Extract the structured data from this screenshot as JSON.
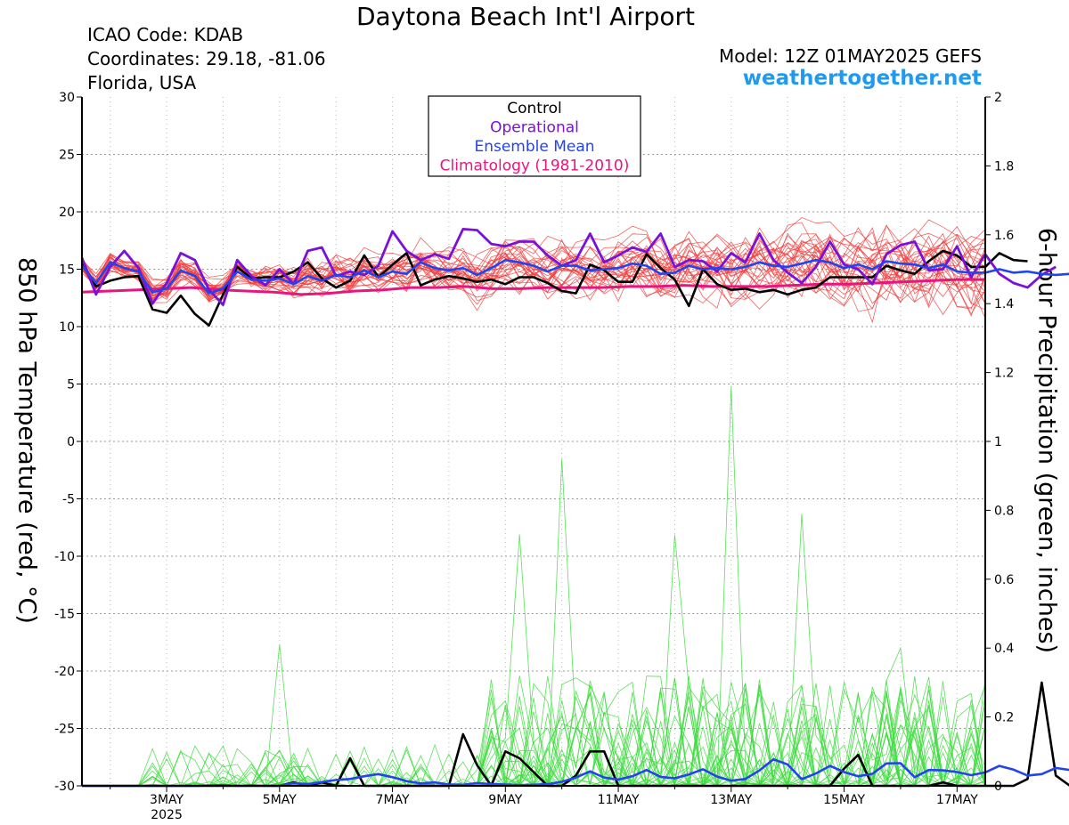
{
  "header": {
    "title": "Daytona Beach Int'l Airport",
    "icao": "ICAO Code: KDAB",
    "coordinates": "Coordinates: 29.18, -81.06",
    "location": "Florida, USA",
    "model": "Model: 12Z 01MAY2025 GEFS",
    "website": "weathertogether.net"
  },
  "colors": {
    "members_temp": "#F03C3C",
    "members_precip": "#3CDC3C",
    "control": "#000000",
    "operational": "#7B10D8",
    "ensemble_mean": "#2244EE",
    "climatology": "#E8157E",
    "website": "#1E9BF0"
  },
  "legend": {
    "items": [
      {
        "label": "Control",
        "color": "#000000"
      },
      {
        "label": "Operational",
        "color": "#7B10D8"
      },
      {
        "label": "Ensemble Mean",
        "color": "#2244EE"
      },
      {
        "label": "Climatology (1981-2010)",
        "color": "#E8157E"
      }
    ]
  },
  "chart_data": {
    "type": "line",
    "title": "Daytona Beach Int'l Airport",
    "xlabel": "",
    "ylabel_left": "850 hPa Temperature (red, °C)",
    "ylabel_right": "6-hour Precipitation (green, inches)",
    "x_start_day": 1.5,
    "x_end_day": 17.5,
    "step_hours": 6,
    "ylim_left": [
      -30,
      30
    ],
    "yticks_left": [
      30,
      25,
      20,
      15,
      10,
      5,
      0,
      -5,
      -10,
      -15,
      -20,
      -25,
      -30
    ],
    "ylim_right": [
      0,
      2
    ],
    "yticks_right": [
      "2",
      "1.8",
      "1.6",
      "1.4",
      "1.2",
      "1",
      "0.8",
      "0.6",
      "0.4",
      "0.2",
      "0"
    ],
    "x_tick_labels": [
      {
        "day": 3,
        "label": "3MAY",
        "sub": "2025"
      },
      {
        "day": 5,
        "label": "5MAY",
        "sub": ""
      },
      {
        "day": 7,
        "label": "7MAY",
        "sub": ""
      },
      {
        "day": 9,
        "label": "9MAY",
        "sub": ""
      },
      {
        "day": 11,
        "label": "11MAY",
        "sub": ""
      },
      {
        "day": 13,
        "label": "13MAY",
        "sub": ""
      },
      {
        "day": 15,
        "label": "15MAY",
        "sub": ""
      },
      {
        "day": 17,
        "label": "17MAY",
        "sub": ""
      }
    ],
    "grid": true,
    "series": [
      {
        "name": "Control",
        "axis": "left",
        "values": [
          15.5,
          13.5,
          14.0,
          14.3,
          14.4,
          11.5,
          11.2,
          12.7,
          11.1,
          10.1,
          12.8,
          15.2,
          14.2,
          14.3,
          14.3,
          14.8,
          15.6,
          14.2,
          13.4,
          14.0,
          16.2,
          14.3,
          15.4,
          16.4,
          13.6,
          14.1,
          14.4,
          14.2,
          13.9,
          14.1,
          13.7,
          14.3,
          14.3,
          13.8,
          13.1,
          12.9,
          15.4,
          14.9,
          13.9,
          13.9,
          16.3,
          15.1,
          14.1,
          11.8,
          15.0,
          13.7,
          13.2,
          13.3,
          13.0,
          13.2,
          12.8,
          13.2,
          13.4,
          14.3,
          14.3,
          14.3,
          14.3,
          15.3,
          14.9,
          14.6,
          15.7,
          16.6,
          16.2,
          15.2,
          15.2,
          16.4,
          15.8,
          15.7
        ]
      },
      {
        "name": "Operational",
        "axis": "left",
        "values": [
          16.0,
          12.8,
          15.2,
          16.6,
          15.1,
          12.0,
          13.8,
          16.4,
          15.8,
          13.2,
          11.9,
          15.8,
          14.4,
          13.6,
          15.0,
          13.7,
          16.6,
          16.9,
          14.4,
          14.8,
          14.5,
          15.3,
          18.3,
          16.6,
          15.8,
          16.3,
          15.9,
          18.5,
          18.4,
          17.2,
          17.0,
          17.4,
          17.4,
          16.2,
          15.3,
          15.8,
          18.1,
          15.6,
          16.2,
          16.9,
          16.5,
          18.1,
          15.2,
          15.8,
          15.7,
          14.8,
          16.4,
          15.6,
          18.1,
          15.8,
          14.7,
          13.8,
          15.2,
          17.4,
          15.4,
          15.0,
          13.7,
          16.3,
          17.1,
          17.4,
          14.9,
          15.0,
          17.0,
          14.3,
          16.3,
          14.6,
          13.8,
          13.4,
          14.5,
          15.2
        ]
      },
      {
        "name": "Ensemble Mean",
        "axis": "left",
        "values": [
          15.3,
          13.8,
          15.6,
          15.1,
          14.8,
          13.0,
          13.3,
          14.9,
          14.4,
          12.9,
          13.3,
          14.8,
          14.1,
          14.0,
          14.2,
          13.7,
          14.4,
          14.0,
          14.5,
          14.3,
          14.9,
          14.3,
          14.8,
          14.6,
          15.6,
          15.1,
          14.9,
          15.1,
          14.5,
          15.1,
          15.8,
          15.6,
          15.3,
          14.8,
          15.3,
          15.3,
          14.9,
          15.0,
          15.1,
          15.5,
          15.3,
          14.6,
          14.7,
          15.3,
          15.0,
          15.1,
          15.0,
          15.2,
          15.6,
          15.3,
          15.2,
          15.5,
          15.8,
          15.6,
          15.1,
          15.4,
          15.0,
          15.7,
          15.5,
          15.4,
          15.1,
          15.4,
          14.8,
          14.7,
          14.7,
          15.0,
          14.7,
          14.8,
          14.6,
          14.5,
          14.6,
          14.9
        ]
      },
      {
        "name": "Climatology (1981-2010)",
        "axis": "left",
        "values": [
          13.0,
          13.1,
          13.2,
          13.3,
          13.4,
          13.2,
          13.1,
          13.0,
          12.8,
          12.9,
          13.1,
          13.2,
          13.4,
          13.4,
          13.5,
          13.3,
          13.3,
          13.4,
          13.4,
          13.4,
          13.5,
          13.5,
          13.6,
          13.5,
          13.5,
          13.5,
          13.6,
          13.7,
          13.7,
          13.8,
          13.9,
          14.0,
          14.1,
          14.1
        ]
      },
      {
        "name": "Control Precipitation",
        "axis": "right",
        "values": [
          0,
          0,
          0,
          0,
          0,
          0,
          0,
          0,
          0,
          0,
          0,
          0,
          0,
          0,
          0,
          0.01,
          0,
          0.01,
          0,
          0.08,
          0,
          0,
          0,
          0,
          0,
          0,
          0,
          0.15,
          0.06,
          0,
          0.1,
          0.08,
          0.04,
          0,
          0,
          0.03,
          0.1,
          0.1,
          0,
          0,
          0,
          0,
          0,
          0,
          0,
          0,
          0,
          0,
          0,
          0,
          0,
          0,
          0,
          0,
          0.05,
          0.09,
          0,
          0,
          0,
          0,
          0,
          0.01,
          0,
          0,
          0,
          0,
          0,
          0.02,
          0.3,
          0.03,
          0,
          0,
          0.02,
          0.07,
          0
        ]
      },
      {
        "name": "Ensemble Mean Precipitation",
        "axis": "right",
        "values": [
          0,
          0,
          0,
          0,
          0,
          0,
          0,
          0,
          0,
          0.001,
          0.002,
          0,
          0.001,
          0,
          0,
          0.008,
          0.005,
          0.011,
          0.017,
          0.02,
          0.028,
          0.034,
          0.025,
          0.014,
          0.007,
          0.01,
          0.004,
          0.003,
          0.008,
          0.005,
          0.004,
          0.002,
          0.003,
          0.005,
          0.012,
          0.024,
          0.042,
          0.024,
          0.018,
          0.028,
          0.046,
          0.026,
          0.022,
          0.033,
          0.048,
          0.027,
          0.015,
          0.02,
          0.045,
          0.077,
          0.062,
          0.019,
          0.036,
          0.058,
          0.04,
          0.028,
          0.035,
          0.065,
          0.066,
          0.025,
          0.046,
          0.045,
          0.04,
          0.031,
          0.039,
          0.058,
          0.047,
          0.03,
          0.034,
          0.052,
          0.046,
          0.028,
          0.034
        ]
      }
    ],
    "members": {
      "count": 30,
      "temp_axis": "left",
      "temp_typical_range": [
        10,
        19
      ],
      "precip_axis": "right",
      "precip_peaks": [
        {
          "day": 5.0,
          "value": 0.41
        },
        {
          "day": 9.2,
          "value": 0.73
        },
        {
          "day": 10.0,
          "value": 0.95
        },
        {
          "day": 12.0,
          "value": 0.73
        },
        {
          "day": 13.0,
          "value": 1.16
        },
        {
          "day": 14.25,
          "value": 0.79
        },
        {
          "day": 16.0,
          "value": 0.4
        }
      ]
    }
  }
}
